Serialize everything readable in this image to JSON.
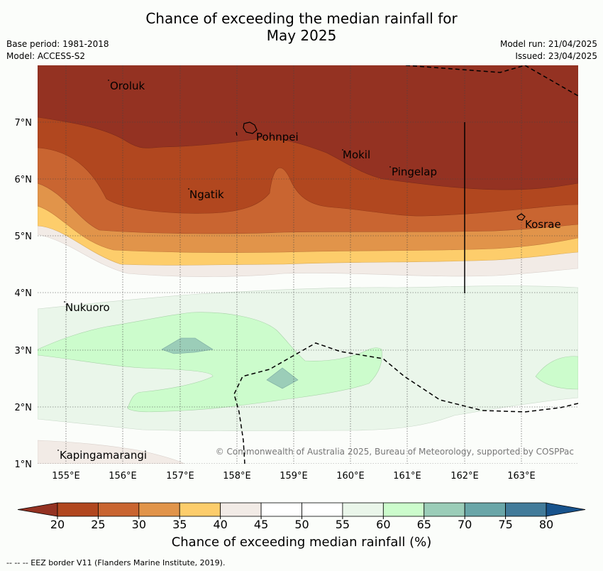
{
  "header": {
    "title_line1": "Chance of exceeding the median rainfall for",
    "title_line2": "May 2025",
    "base_period": "Base period: 1981-2018",
    "model": "Model: ACCESS-S2",
    "model_run": "Model run: 21/04/2025",
    "issued": "Issued: 23/04/2025"
  },
  "map": {
    "lat_labels": [
      "7°N",
      "6°N",
      "5°N",
      "4°N",
      "3°N",
      "2°N",
      "1°N"
    ],
    "lon_labels": [
      "155°E",
      "156°E",
      "157°E",
      "158°E",
      "159°E",
      "160°E",
      "161°E",
      "162°E",
      "163°E"
    ],
    "places": [
      "Oroluk",
      "Pohnpei",
      "Mokil",
      "Pingelap",
      "Ngatik",
      "Kosrae",
      "Nukuoro",
      "Kapingamarangi"
    ],
    "copyright": "© Commonwealth of Australia 2025, Bureau of Meteorology, supported by COSPPac"
  },
  "colorbar": {
    "ticks": [
      "20",
      "25",
      "30",
      "35",
      "40",
      "45",
      "50",
      "55",
      "60",
      "65",
      "70",
      "75",
      "80"
    ],
    "colors": [
      "#b1471f",
      "#c96531",
      "#e1944a",
      "#fdcd6b",
      "#f2ebe6",
      "#ffffff",
      "#ffffff",
      "#eaf6ea",
      "#ccfccc",
      "#9bcdb8",
      "#6aa6a8",
      "#427b9a"
    ],
    "under_color": "#943222",
    "over_color": "#18538c",
    "label": "Chance of exceeding median rainfall (%)"
  },
  "footnote": "-- -- -- EEZ border V11 (Flanders Marine Institute, 2019)."
}
